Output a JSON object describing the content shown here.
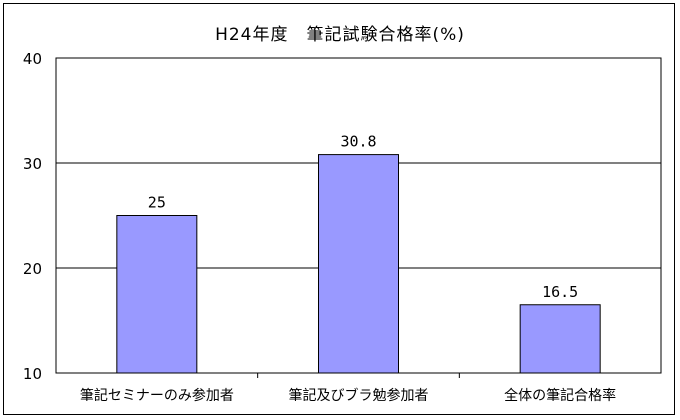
{
  "chart_data": {
    "type": "bar",
    "title": "H24年度　筆記試験合格率(%)",
    "categories": [
      "筆記セミナーのみ参加者",
      "筆記及びブラ勉参加者",
      "全体の筆記合格率"
    ],
    "values": [
      25,
      30.8,
      16.5
    ],
    "data_labels": [
      "25",
      "30.8",
      "16.5"
    ],
    "xlabel": "",
    "ylabel": "",
    "ylim": [
      10,
      40
    ],
    "yticks": [
      "10",
      "20",
      "30",
      "40"
    ],
    "grid": true,
    "legend": "none",
    "colors": {
      "bar_fill": "#9999ff",
      "bar_stroke": "#000000",
      "grid": "#000000",
      "background": "#ffffff"
    }
  }
}
